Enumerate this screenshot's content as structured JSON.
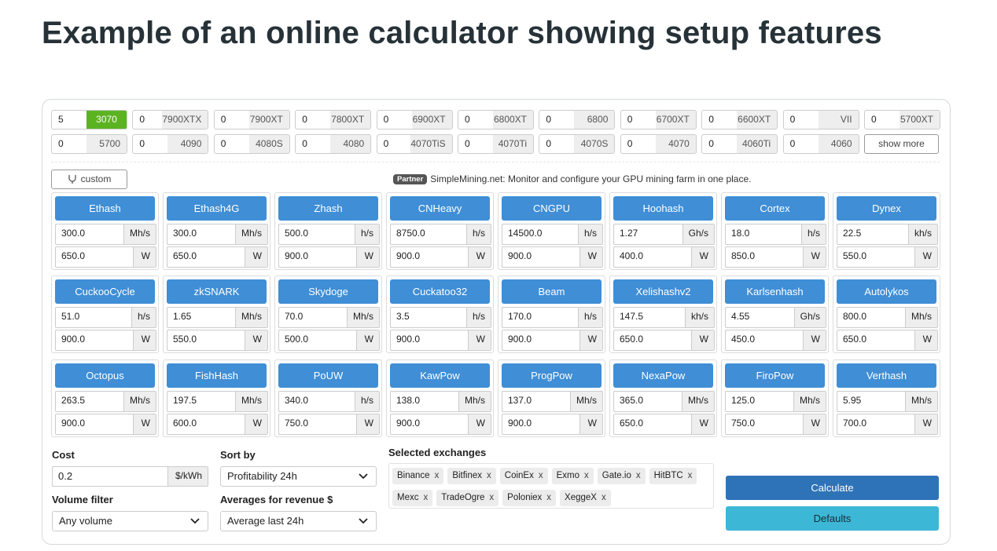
{
  "title": "Example of an online calculator showing setup features",
  "gpus": [
    [
      {
        "count": "5",
        "model": "3070",
        "selected": true
      },
      {
        "count": "0",
        "model": "7900XTX"
      },
      {
        "count": "0",
        "model": "7900XT"
      },
      {
        "count": "0",
        "model": "7800XT"
      },
      {
        "count": "0",
        "model": "6900XT"
      },
      {
        "count": "0",
        "model": "6800XT"
      },
      {
        "count": "0",
        "model": "6800"
      },
      {
        "count": "0",
        "model": "6700XT"
      },
      {
        "count": "0",
        "model": "6600XT"
      },
      {
        "count": "0",
        "model": "VII"
      },
      {
        "count": "0",
        "model": "5700XT"
      }
    ],
    [
      {
        "count": "0",
        "model": "5700"
      },
      {
        "count": "0",
        "model": "4090"
      },
      {
        "count": "0",
        "model": "4080S"
      },
      {
        "count": "0",
        "model": "4080"
      },
      {
        "count": "0",
        "model": "4070TiS"
      },
      {
        "count": "0",
        "model": "4070Ti"
      },
      {
        "count": "0",
        "model": "4070S"
      },
      {
        "count": "0",
        "model": "4070"
      },
      {
        "count": "0",
        "model": "4060Ti"
      },
      {
        "count": "0",
        "model": "4060"
      }
    ]
  ],
  "show_more": "show more",
  "custom": "custom",
  "partner": {
    "badge": "Partner",
    "text": "SimpleMining.net: Monitor and configure your GPU mining farm in one place."
  },
  "power_unit": "W",
  "algorithms": [
    [
      {
        "name": "Ethash",
        "hashrate": "300.0",
        "unit": "Mh/s",
        "power": "650.0"
      },
      {
        "name": "Ethash4G",
        "hashrate": "300.0",
        "unit": "Mh/s",
        "power": "650.0"
      },
      {
        "name": "Zhash",
        "hashrate": "500.0",
        "unit": "h/s",
        "power": "900.0"
      },
      {
        "name": "CNHeavy",
        "hashrate": "8750.0",
        "unit": "h/s",
        "power": "900.0"
      },
      {
        "name": "CNGPU",
        "hashrate": "14500.0",
        "unit": "h/s",
        "power": "900.0"
      },
      {
        "name": "Hoohash",
        "hashrate": "1.27",
        "unit": "Gh/s",
        "power": "400.0"
      },
      {
        "name": "Cortex",
        "hashrate": "18.0",
        "unit": "h/s",
        "power": "850.0"
      },
      {
        "name": "Dynex",
        "hashrate": "22.5",
        "unit": "kh/s",
        "power": "550.0"
      }
    ],
    [
      {
        "name": "CuckooCycle",
        "hashrate": "51.0",
        "unit": "h/s",
        "power": "900.0"
      },
      {
        "name": "zkSNARK",
        "hashrate": "1.65",
        "unit": "Mh/s",
        "power": "550.0"
      },
      {
        "name": "Skydoge",
        "hashrate": "70.0",
        "unit": "Mh/s",
        "power": "500.0"
      },
      {
        "name": "Cuckatoo32",
        "hashrate": "3.5",
        "unit": "h/s",
        "power": "900.0"
      },
      {
        "name": "Beam",
        "hashrate": "170.0",
        "unit": "h/s",
        "power": "900.0"
      },
      {
        "name": "Xelishashv2",
        "hashrate": "147.5",
        "unit": "kh/s",
        "power": "650.0"
      },
      {
        "name": "Karlsenhash",
        "hashrate": "4.55",
        "unit": "Gh/s",
        "power": "450.0"
      },
      {
        "name": "Autolykos",
        "hashrate": "800.0",
        "unit": "Mh/s",
        "power": "650.0"
      }
    ],
    [
      {
        "name": "Octopus",
        "hashrate": "263.5",
        "unit": "Mh/s",
        "power": "900.0"
      },
      {
        "name": "FishHash",
        "hashrate": "197.5",
        "unit": "Mh/s",
        "power": "600.0"
      },
      {
        "name": "PoUW",
        "hashrate": "340.0",
        "unit": "h/s",
        "power": "750.0"
      },
      {
        "name": "KawPow",
        "hashrate": "138.0",
        "unit": "Mh/s",
        "power": "900.0"
      },
      {
        "name": "ProgPow",
        "hashrate": "137.0",
        "unit": "Mh/s",
        "power": "900.0"
      },
      {
        "name": "NexaPow",
        "hashrate": "365.0",
        "unit": "Mh/s",
        "power": "650.0"
      },
      {
        "name": "FiroPow",
        "hashrate": "125.0",
        "unit": "Mh/s",
        "power": "750.0"
      },
      {
        "name": "Verthash",
        "hashrate": "5.95",
        "unit": "Mh/s",
        "power": "700.0"
      }
    ]
  ],
  "cost": {
    "label": "Cost",
    "value": "0.2",
    "unit": "$/kWh"
  },
  "volume_filter": {
    "label": "Volume filter",
    "value": "Any volume"
  },
  "sort_by": {
    "label": "Sort by",
    "value": "Profitability 24h"
  },
  "averages": {
    "label": "Averages for revenue $",
    "value": "Average last 24h"
  },
  "exchanges": {
    "label": "Selected exchanges",
    "remove": "x",
    "rows": [
      [
        "Binance",
        "Bitfinex",
        "CoinEx",
        "Exmo",
        "Gate.io",
        "HitBTC"
      ],
      [
        "Mexc",
        "TradeOgre",
        "Poloniex",
        "XeggeX"
      ]
    ]
  },
  "buttons": {
    "calculate": "Calculate",
    "defaults": "Defaults"
  }
}
